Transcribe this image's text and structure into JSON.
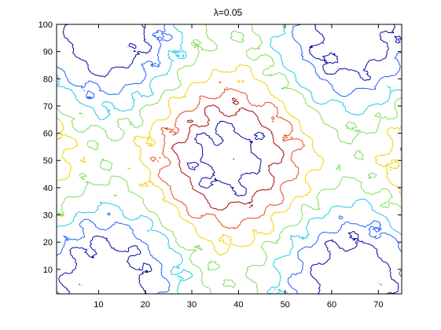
{
  "chart_data": {
    "type": "contour",
    "title": "λ=0.05",
    "xlabel": "",
    "ylabel": "",
    "xlim": [
      1,
      75
    ],
    "ylim": [
      1,
      100
    ],
    "xticks": [
      10,
      20,
      30,
      40,
      50,
      60,
      70
    ],
    "yticks": [
      10,
      20,
      30,
      40,
      50,
      60,
      70,
      80,
      90,
      100
    ],
    "grid": false,
    "colors": {
      "dark_red": "#a50000",
      "red_orange": "#e8451a",
      "yellow": "#f0d000",
      "green": "#7fdc5a",
      "cyan": "#1ec8e6",
      "blue": "#1e5cff",
      "navy": "#0000a0"
    },
    "field_description": "periodic field peaking near (x≈40,y≈50) and corners, with troughs near (x≈5,y≈50), (x≈70,y≈50), (x≈37,y≈95), (x≈37,y≈5)"
  }
}
